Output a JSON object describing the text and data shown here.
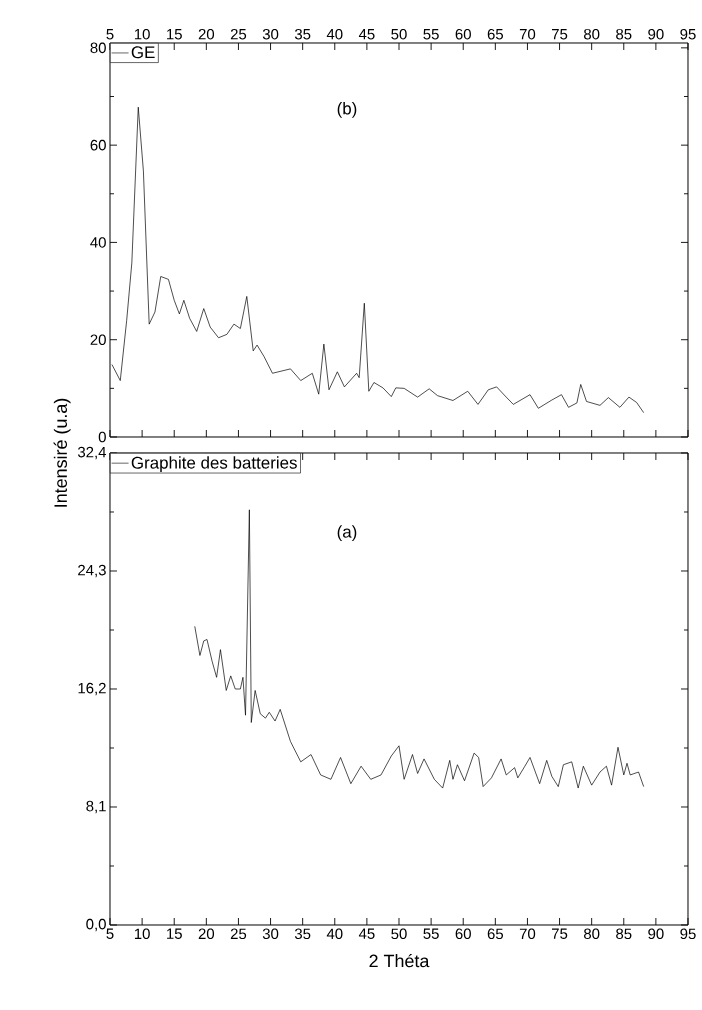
{
  "chart_data": [
    {
      "type": "line",
      "annotations": [
        "(b)"
      ],
      "legend": "top left",
      "xlim": [
        5,
        95
      ],
      "xticks": [
        5,
        10,
        15,
        20,
        25,
        30,
        35,
        40,
        45,
        50,
        55,
        60,
        65,
        70,
        75,
        80,
        85,
        90,
        95
      ],
      "ylim": [
        0,
        81
      ],
      "yticks": [
        0,
        20,
        40,
        60,
        80
      ],
      "series": [
        {
          "name": "GE",
          "color": "#000000",
          "x": [
            5.3,
            6.6,
            7.6,
            8.4,
            9.4,
            10.2,
            11.1,
            12.0,
            12.9,
            14.1,
            15.0,
            15.8,
            16.5,
            17.4,
            18.5,
            19.6,
            20.6,
            21.9,
            23.2,
            24.3,
            25.3,
            26.3,
            27.3,
            27.9,
            29.0,
            30.3,
            33.1,
            34.7,
            36.5,
            37.5,
            38.3,
            39.1,
            40.4,
            41.5,
            43.4,
            43.8,
            44.6,
            45.3,
            46.1,
            47.5,
            48.8,
            49.5,
            50.8,
            52.9,
            54.7,
            56.0,
            58.4,
            60.7,
            62.3,
            63.9,
            65.2,
            66.7,
            67.8,
            70.4,
            71.7,
            73.8,
            75.3,
            76.4,
            77.7,
            78.3,
            79.2,
            81.3,
            82.6,
            84.4,
            85.8,
            87.0,
            88.1
          ],
          "values": [
            14.9,
            11.6,
            24,
            35.8,
            67.8,
            54.7,
            23.2,
            25.7,
            33,
            32.4,
            28.1,
            25.3,
            28.1,
            24.4,
            21.7,
            26.4,
            22.6,
            20.4,
            21.1,
            23.2,
            22.3,
            28.9,
            17.7,
            18.9,
            16.5,
            13.1,
            14.0,
            11.6,
            13.1,
            8.8,
            19.1,
            9.7,
            13.4,
            10.3,
            13.1,
            12.2,
            27.5,
            9.4,
            11.2,
            10.1,
            8.3,
            10.1,
            10.0,
            8.2,
            9.9,
            8.5,
            7.5,
            9.4,
            6.7,
            9.7,
            10.3,
            8.2,
            6.7,
            8.7,
            5.9,
            7.6,
            8.7,
            6.1,
            7.0,
            10.8,
            7.3,
            6.5,
            8.1,
            6.1,
            8.2,
            7.1,
            5.0
          ]
        }
      ]
    },
    {
      "type": "line",
      "annotations": [
        "(a)"
      ],
      "legend": "top left",
      "xlabel": "2 Théta",
      "ylabel": "Intensiré (u.a)",
      "xlim": [
        5,
        95
      ],
      "xticks": [
        5,
        10,
        15,
        20,
        25,
        30,
        35,
        40,
        45,
        50,
        55,
        60,
        65,
        70,
        75,
        80,
        85,
        90,
        95
      ],
      "ylim": [
        0,
        32.4
      ],
      "yticks": [
        {
          "value": 0,
          "label": "0,0"
        },
        {
          "value": 8.1,
          "label": "8,1"
        },
        {
          "value": 16.2,
          "label": "16,2"
        },
        {
          "value": 24.3,
          "label": "24,3"
        },
        {
          "value": 32.4,
          "label": "32,4"
        }
      ],
      "series": [
        {
          "name": "Graphite des batteries",
          "color": "#000000",
          "x": [
            18.2,
            19.0,
            19.6,
            20.1,
            20.9,
            21.6,
            22.2,
            23.1,
            23.8,
            24.5,
            25.3,
            25.7,
            26.1,
            26.7,
            27.0,
            27.6,
            28.4,
            29.2,
            29.8,
            30.7,
            31.5,
            33.1,
            34.7,
            36.3,
            37.8,
            39.4,
            40.9,
            42.5,
            44.1,
            45.6,
            47.2,
            48.8,
            50.0,
            50.8,
            52.1,
            52.9,
            53.9,
            55.5,
            56.8,
            57.9,
            58.4,
            59.1,
            60.2,
            61.7,
            62.4,
            63.1,
            64.4,
            65.9,
            66.7,
            68.0,
            68.5,
            69.6,
            70.4,
            71.9,
            73.0,
            73.8,
            74.8,
            75.6,
            76.9,
            77.9,
            78.7,
            80.0,
            81.3,
            82.3,
            83.1,
            84.1,
            85.0,
            85.5,
            86.0,
            87.3,
            88.1
          ],
          "values": [
            20.5,
            18.5,
            19.5,
            19.6,
            18.1,
            17.0,
            18.9,
            16.1,
            17.1,
            16.2,
            16.2,
            17.0,
            14.4,
            28.5,
            13.9,
            16.1,
            14.5,
            14.2,
            14.6,
            14.0,
            14.8,
            12.6,
            11.2,
            11.7,
            10.3,
            10.0,
            11.5,
            9.7,
            10.9,
            10.0,
            10.3,
            11.6,
            12.3,
            10.0,
            11.7,
            10.4,
            11.4,
            10.0,
            9.4,
            11.3,
            10.0,
            11.0,
            9.9,
            11.8,
            11.5,
            9.5,
            10.1,
            11.4,
            10.3,
            10.8,
            10.1,
            10.9,
            11.5,
            9.7,
            11.3,
            10.2,
            9.5,
            11.0,
            11.2,
            9.4,
            10.9,
            9.6,
            10.5,
            10.9,
            9.6,
            12.2,
            10.3,
            11.1,
            10.3,
            10.5,
            9.5
          ]
        }
      ]
    }
  ]
}
